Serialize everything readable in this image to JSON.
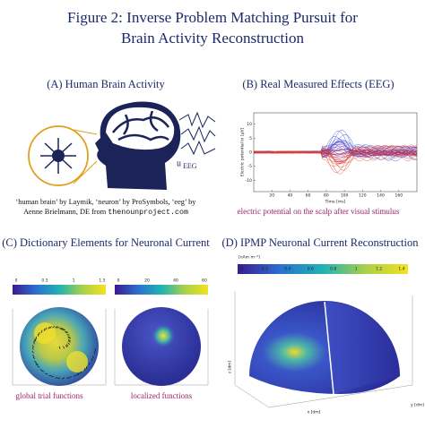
{
  "title": [
    "Figure 2: Inverse Problem Matching Pursuit for",
    "Brain Activity Reconstruction"
  ],
  "panel_a": {
    "heading": "(A) Human Brain Activity",
    "eeg_symbol": "u",
    "eeg_subscript": "EEG",
    "credit": [
      "‘human brain’ by Laymik, ‘neuron’ by ProSymbols, ‘eeg’ by",
      "Aenne Brielmann, DE from ",
      "thenounproject.com"
    ]
  },
  "panel_b": {
    "heading": "(B) Real Measured Effects (EEG)",
    "y_label": "Electric potential in [μV]",
    "x_label": "Time [ms]",
    "xticks": [
      20,
      40,
      60,
      80,
      100,
      120,
      140,
      160
    ],
    "yticks": [
      10,
      5,
      0,
      -5,
      -10
    ],
    "caption": "electric potential on the scalp after visual stimulus"
  },
  "panel_c": {
    "heading": "(C) Dictionary Elements for Neuronal Current",
    "colorbar_ticks": [
      [
        "0",
        "0.5",
        "1",
        "1.5"
      ],
      [
        "0",
        "20",
        "40",
        "60"
      ]
    ],
    "captions": [
      "global trial functions",
      "localized functions"
    ]
  },
  "panel_d": {
    "heading": "(D) IPMP Neuronal Current Reconstruction",
    "colorbar_label": "[nAm m⁻²]",
    "colorbar_ticks": [
      "0",
      "0.2",
      "0.4",
      "0.6",
      "0.8",
      "1",
      "1.2",
      "1.4"
    ],
    "x_label": "x [dm]",
    "y_label": "y [dm]",
    "z_label": "z [dm]"
  }
}
